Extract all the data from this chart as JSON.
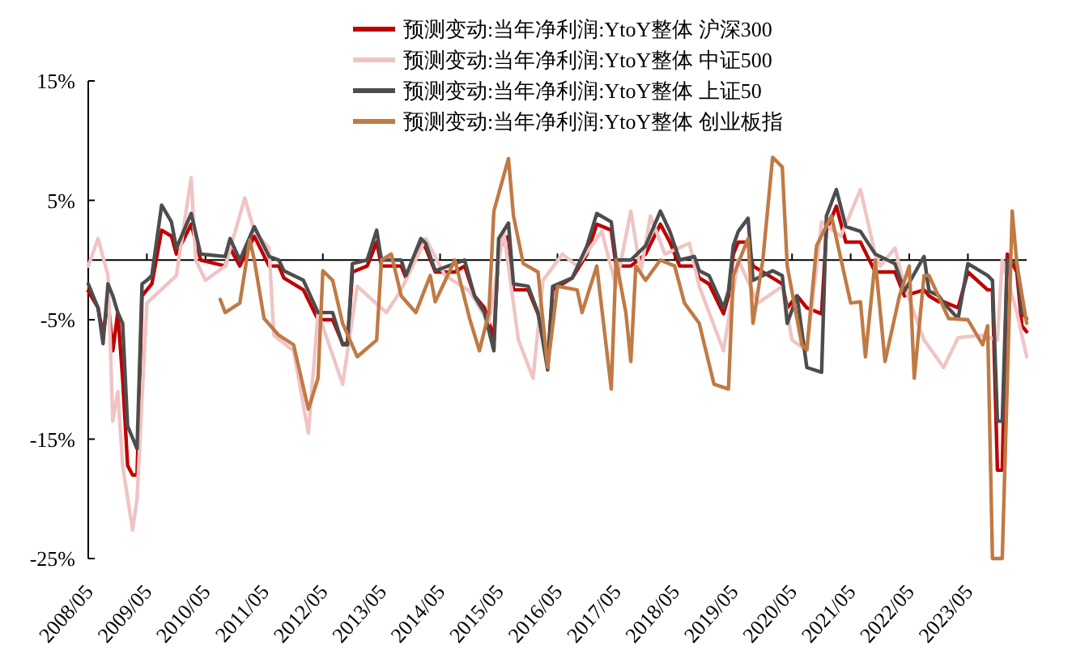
{
  "chart_data": {
    "type": "line",
    "legend": "top",
    "grid": false,
    "marker": "none",
    "line_style": "solid",
    "xlim": [
      "2008-05",
      "2024-05"
    ],
    "xticks": [
      {
        "value": "2008-05",
        "label": "2008/05"
      },
      {
        "value": "2009-05",
        "label": "2009/05"
      },
      {
        "value": "2010-05",
        "label": "2010/05"
      },
      {
        "value": "2011-05",
        "label": "2011/05"
      },
      {
        "value": "2012-05",
        "label": "2012/05"
      },
      {
        "value": "2013-05",
        "label": "2013/05"
      },
      {
        "value": "2014-05",
        "label": "2014/05"
      },
      {
        "value": "2015-05",
        "label": "2015/05"
      },
      {
        "value": "2016-05",
        "label": "2016/05"
      },
      {
        "value": "2017-05",
        "label": "2017/05"
      },
      {
        "value": "2018-05",
        "label": "2018/05"
      },
      {
        "value": "2019-05",
        "label": "2019/05"
      },
      {
        "value": "2020-05",
        "label": "2020/05"
      },
      {
        "value": "2021-05",
        "label": "2021/05"
      },
      {
        "value": "2022-05",
        "label": "2022/05"
      },
      {
        "value": "2023-05",
        "label": "2023/05"
      }
    ],
    "ylim": [
      -25,
      15
    ],
    "yticks": [
      {
        "value": -25,
        "label": "-25%"
      },
      {
        "value": -15,
        "label": "-15%"
      },
      {
        "value": -5,
        "label": "-5%"
      },
      {
        "value": 5,
        "label": "5%"
      },
      {
        "value": 15,
        "label": "15%"
      }
    ],
    "series": [
      {
        "name": "预测变动:当年净利润:YtoY整体 沪深300",
        "color": "#c00000",
        "x": [
          "2008-05",
          "2008-07",
          "2008-08",
          "2008-09",
          "2008-10",
          "2008-11",
          "2008-12",
          "2009-01",
          "2009-02",
          "2009-03",
          "2009-04",
          "2009-05",
          "2009-06",
          "2009-08",
          "2009-10",
          "2009-11",
          "2010-02",
          "2010-04",
          "2010-09",
          "2010-10",
          "2010-12",
          "2011-03",
          "2011-06",
          "2011-08",
          "2011-09",
          "2012-01",
          "2012-04",
          "2012-07",
          "2012-09",
          "2012-10",
          "2012-11",
          "2013-02",
          "2013-04",
          "2013-05",
          "2013-09",
          "2013-10",
          "2014-01",
          "2014-02",
          "2014-04",
          "2014-08",
          "2014-10",
          "2014-12",
          "2015-02",
          "2015-04",
          "2015-05",
          "2015-07",
          "2015-08",
          "2015-11",
          "2016-01",
          "2016-03",
          "2016-04",
          "2016-08",
          "2016-11",
          "2017-01",
          "2017-04",
          "2017-05",
          "2017-08",
          "2017-11",
          "2018-02",
          "2018-04",
          "2018-06",
          "2018-09",
          "2018-10",
          "2018-12",
          "2019-03",
          "2019-04",
          "2019-05",
          "2019-06",
          "2019-08",
          "2019-09",
          "2020-01",
          "2020-03",
          "2020-04",
          "2020-06",
          "2020-08",
          "2020-11",
          "2020-12",
          "2021-02",
          "2021-04",
          "2021-07",
          "2021-10",
          "2022-02",
          "2022-04",
          "2022-08",
          "2022-09",
          "2022-11",
          "2022-12",
          "2023-03",
          "2023-05",
          "2023-09",
          "2023-10",
          "2023-11",
          "2023-12",
          "2024-01",
          "2024-03",
          "2024-04",
          "2024-05"
        ],
        "values": [
          -2.6,
          -4,
          -6.3,
          -3.4,
          -7.6,
          -4.4,
          -9.9,
          -17.2,
          -18,
          -18,
          -3,
          -2.5,
          -2,
          2.5,
          2,
          0.5,
          3,
          0,
          -0.5,
          1,
          -0.5,
          2,
          -0.5,
          -0.5,
          -1.5,
          -2.5,
          -5,
          -5,
          -7,
          -7,
          -1,
          -0.5,
          1.5,
          -0.5,
          -0.5,
          -1.5,
          1.5,
          1,
          -1,
          -1,
          -0.5,
          -3,
          -4,
          -6.5,
          1,
          2,
          -2.5,
          -2.5,
          -4.5,
          -8.5,
          -2.5,
          -1.5,
          0.5,
          3,
          2.5,
          -0.5,
          -0.5,
          0.5,
          3,
          1.5,
          -0.5,
          -0.5,
          -1.5,
          -2,
          -4.5,
          -3,
          0.5,
          1.5,
          1.5,
          -0.5,
          -1.5,
          -2,
          -4,
          -3,
          -4,
          -4.5,
          2.5,
          4.5,
          1.5,
          1.5,
          -1,
          -1,
          -3,
          -2.5,
          -3,
          -3.5,
          -3.5,
          -4,
          -1,
          -2.5,
          -2.5,
          -17.6,
          -17.6,
          0.5,
          -1,
          -5.5,
          -6
        ]
      },
      {
        "name": "预测变动:当年净利润:YtoY整体 中证500",
        "color": "#f0c4c4",
        "x": [
          "2008-05",
          "2008-07",
          "2008-09",
          "2008-10",
          "2008-11",
          "2008-12",
          "2009-02",
          "2009-03",
          "2009-05",
          "2009-11",
          "2010-02",
          "2010-03",
          "2010-05",
          "2010-09",
          "2011-01",
          "2011-03",
          "2011-06",
          "2011-07",
          "2011-11",
          "2012-02",
          "2012-04",
          "2012-09",
          "2012-12",
          "2013-06",
          "2013-09",
          "2014-02",
          "2014-06",
          "2014-11",
          "2015-03",
          "2015-06",
          "2015-09",
          "2015-12",
          "2016-02",
          "2016-06",
          "2016-09",
          "2017-02",
          "2017-05",
          "2017-08",
          "2017-10",
          "2017-12",
          "2018-03",
          "2018-08",
          "2018-10",
          "2019-03",
          "2019-06",
          "2019-10",
          "2020-03",
          "2020-05",
          "2020-08",
          "2020-11",
          "2021-03",
          "2021-07",
          "2021-10",
          "2021-11",
          "2022-02",
          "2022-04",
          "2022-08",
          "2022-12",
          "2023-03",
          "2023-08",
          "2023-11",
          "2023-12",
          "2024-03",
          "2024-05"
        ],
        "values": [
          -0.5,
          1.8,
          -1.3,
          -13.5,
          -11,
          -17.2,
          -22.6,
          -20,
          -3.6,
          -1.3,
          6.9,
          0,
          -1.7,
          -0.5,
          5.2,
          2.4,
          1,
          -6.3,
          -7.6,
          -14.5,
          -4.4,
          -10.4,
          -2.2,
          -4.4,
          -2.5,
          1.8,
          -1.3,
          -2.6,
          -5.3,
          2.4,
          -6.7,
          -9.9,
          -1.7,
          0.5,
          -0.5,
          2.4,
          -2.2,
          4.1,
          -1,
          3.7,
          0.5,
          1.4,
          -2.2,
          -7.6,
          0,
          -3.6,
          -2.2,
          -6.7,
          -7.6,
          3.2,
          2,
          5.9,
          0.5,
          -0.5,
          1,
          -2.2,
          -6.7,
          -9,
          -6.5,
          -6.3,
          -6.7,
          0,
          -4.4,
          -8.1
        ]
      },
      {
        "name": "预测变动:当年净利润:YtoY整体 上证50",
        "color": "#4d4d4d",
        "x": [
          "2008-05",
          "2008-07",
          "2008-08",
          "2008-09",
          "2008-10",
          "2008-11",
          "2008-12",
          "2009-01",
          "2009-03",
          "2009-04",
          "2009-05",
          "2009-06",
          "2009-08",
          "2009-10",
          "2009-11",
          "2010-02",
          "2010-04",
          "2010-09",
          "2010-10",
          "2010-12",
          "2011-03",
          "2011-06",
          "2011-08",
          "2011-09",
          "2012-01",
          "2012-04",
          "2012-07",
          "2012-09",
          "2012-10",
          "2012-11",
          "2013-02",
          "2013-04",
          "2013-05",
          "2013-09",
          "2013-10",
          "2014-01",
          "2014-02",
          "2014-04",
          "2014-08",
          "2014-10",
          "2014-12",
          "2015-02",
          "2015-04",
          "2015-05",
          "2015-07",
          "2015-08",
          "2015-11",
          "2016-01",
          "2016-03",
          "2016-04",
          "2016-08",
          "2016-11",
          "2017-01",
          "2017-04",
          "2017-05",
          "2017-08",
          "2017-11",
          "2018-02",
          "2018-04",
          "2018-06",
          "2018-09",
          "2018-10",
          "2018-12",
          "2019-03",
          "2019-04",
          "2019-05",
          "2019-06",
          "2019-08",
          "2019-09",
          "2020-01",
          "2020-03",
          "2020-04",
          "2020-06",
          "2020-08",
          "2020-11",
          "2020-12",
          "2021-02",
          "2021-04",
          "2021-07",
          "2021-10",
          "2022-02",
          "2022-04",
          "2022-08",
          "2022-09",
          "2022-11",
          "2022-12",
          "2023-03",
          "2023-05",
          "2023-09",
          "2023-10",
          "2023-11",
          "2023-12",
          "2024-01",
          "2024-03",
          "2024-04",
          "2024-05"
        ],
        "values": [
          -2,
          -4,
          -7,
          -2,
          -3,
          -4.4,
          -5.3,
          -13.9,
          -15.8,
          -2,
          -1.7,
          -1.3,
          4.6,
          3.2,
          1,
          3.9,
          0.5,
          0.3,
          1.8,
          0,
          2.8,
          0.3,
          0,
          -0.9,
          -1.7,
          -4.4,
          -4.4,
          -7.1,
          -7.1,
          -0.3,
          0,
          2.5,
          0,
          0,
          -1.3,
          1.8,
          1.4,
          -0.9,
          -0.3,
          0,
          -3,
          -4.4,
          -7.6,
          1.8,
          3.1,
          -2,
          -2.2,
          -4.4,
          -9.2,
          -2.2,
          -1.5,
          1.2,
          3.9,
          3.2,
          0,
          0,
          1.2,
          4.1,
          2.4,
          0,
          0.3,
          -0.9,
          -1.3,
          -4,
          -2.6,
          1.2,
          2.4,
          3.5,
          -1.7,
          -0.9,
          -1.3,
          -5.3,
          -3,
          -9,
          -9.4,
          3.7,
          5.9,
          2.8,
          2.4,
          0.5,
          -0.3,
          -2.6,
          0.3,
          -2.6,
          -3,
          -3.6,
          -4.9,
          -0.3,
          -1.3,
          -1.7,
          -13.5,
          -13.5,
          0,
          -0.3,
          -4.4,
          -4.9
        ]
      },
      {
        "name": "预测变动:当年净利润:YtoY整体 创业板指",
        "color": "#c07a45",
        "x": [
          "2010-08",
          "2010-09",
          "2010-12",
          "2011-02",
          "2011-03",
          "2011-05",
          "2011-08",
          "2011-11",
          "2012-02",
          "2012-04",
          "2012-05",
          "2012-07",
          "2012-09",
          "2012-12",
          "2013-04",
          "2013-05",
          "2013-07",
          "2013-09",
          "2013-12",
          "2014-03",
          "2014-04",
          "2014-08",
          "2014-11",
          "2015-01",
          "2015-03",
          "2015-04",
          "2015-07",
          "2015-08",
          "2015-10",
          "2016-01",
          "2016-03",
          "2016-05",
          "2016-09",
          "2016-10",
          "2017-01",
          "2017-04",
          "2017-05",
          "2017-07",
          "2017-08",
          "2017-09",
          "2017-11",
          "2018-02",
          "2018-05",
          "2018-07",
          "2018-10",
          "2019-01",
          "2019-04",
          "2019-05",
          "2019-08",
          "2019-09",
          "2019-11",
          "2020-01",
          "2020-03",
          "2020-04",
          "2020-07",
          "2020-08",
          "2020-10",
          "2021-01",
          "2021-05",
          "2021-07",
          "2021-08",
          "2021-10",
          "2021-12",
          "2022-03",
          "2022-05",
          "2022-06",
          "2022-08",
          "2022-09",
          "2023-01",
          "2023-05",
          "2023-08",
          "2023-09",
          "2023-10",
          "2023-12",
          "2024-02",
          "2024-03",
          "2024-05"
        ],
        "values": [
          -3.3,
          -4.4,
          -3.6,
          1.7,
          0,
          -4.9,
          -6.3,
          -7.1,
          -12.5,
          -9.9,
          -0.9,
          -1.7,
          -5.3,
          -8.1,
          -6.7,
          0,
          0.5,
          -3,
          -4.4,
          -1.3,
          -3.5,
          0,
          -4.9,
          -7.6,
          -4.4,
          4.1,
          8.5,
          3.7,
          -0.3,
          -1,
          -9,
          -2.2,
          -2.5,
          -4.4,
          -0.5,
          -10.8,
          0,
          -4.4,
          -8.5,
          -0.5,
          -1.7,
          0,
          -0.5,
          -3.6,
          -5.3,
          -10.4,
          -10.8,
          -1.3,
          1.8,
          -5.3,
          0,
          8.6,
          7.8,
          -0.5,
          -7.1,
          -7.5,
          1.2,
          3.7,
          -3.6,
          -3.5,
          -8.1,
          0,
          -8.5,
          -3,
          -0.5,
          -9.9,
          -1.3,
          -1.3,
          -4.9,
          -5,
          -7.1,
          -5.5,
          -25,
          -25,
          4.1,
          -0.3,
          -5.3
        ]
      }
    ]
  }
}
